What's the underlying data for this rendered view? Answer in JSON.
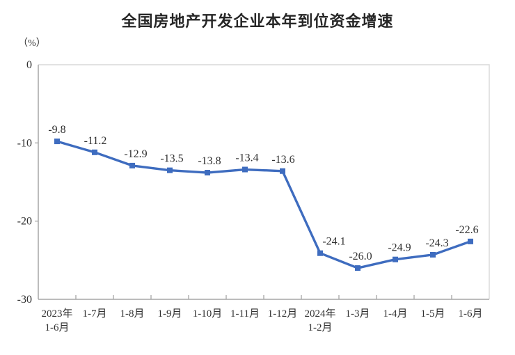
{
  "chart_data": {
    "type": "line",
    "title": "全国房地产开发企业本年到位资金增速",
    "ylabel": "（%）",
    "xlabel": "",
    "categories": [
      "2023年\n1-6月",
      "1-7月",
      "1-8月",
      "1-9月",
      "1-10月",
      "1-11月",
      "1-12月",
      "2024年\n1-2月",
      "1-3月",
      "1-4月",
      "1-5月",
      "1-6月"
    ],
    "values": [
      -9.8,
      -11.2,
      -12.9,
      -13.5,
      -13.8,
      -13.4,
      -13.6,
      -24.1,
      -26.0,
      -24.9,
      -24.3,
      -22.6
    ],
    "point_labels": [
      "-9.8",
      "-11.2",
      "-12.9",
      "-13.5",
      "-13.8",
      "-13.4",
      "-13.6",
      "-24.1",
      "-26.0",
      "-24.9",
      "-24.3",
      "-22.6"
    ],
    "label_dx": [
      0,
      1,
      5,
      3,
      3,
      3,
      1,
      20,
      4,
      6,
      6,
      -5
    ],
    "ylim": [
      -30,
      0
    ],
    "yticks": [
      0,
      -10,
      -20,
      -30
    ],
    "ytick_labels": [
      "0",
      "-10",
      "-20",
      "-30"
    ],
    "grid": false,
    "legend": "none",
    "marker": "square",
    "line_color": "#3E6CBF",
    "axis_color": "#A6A6A6",
    "border_color": "#D8D8D8",
    "text_color": "#303030"
  }
}
